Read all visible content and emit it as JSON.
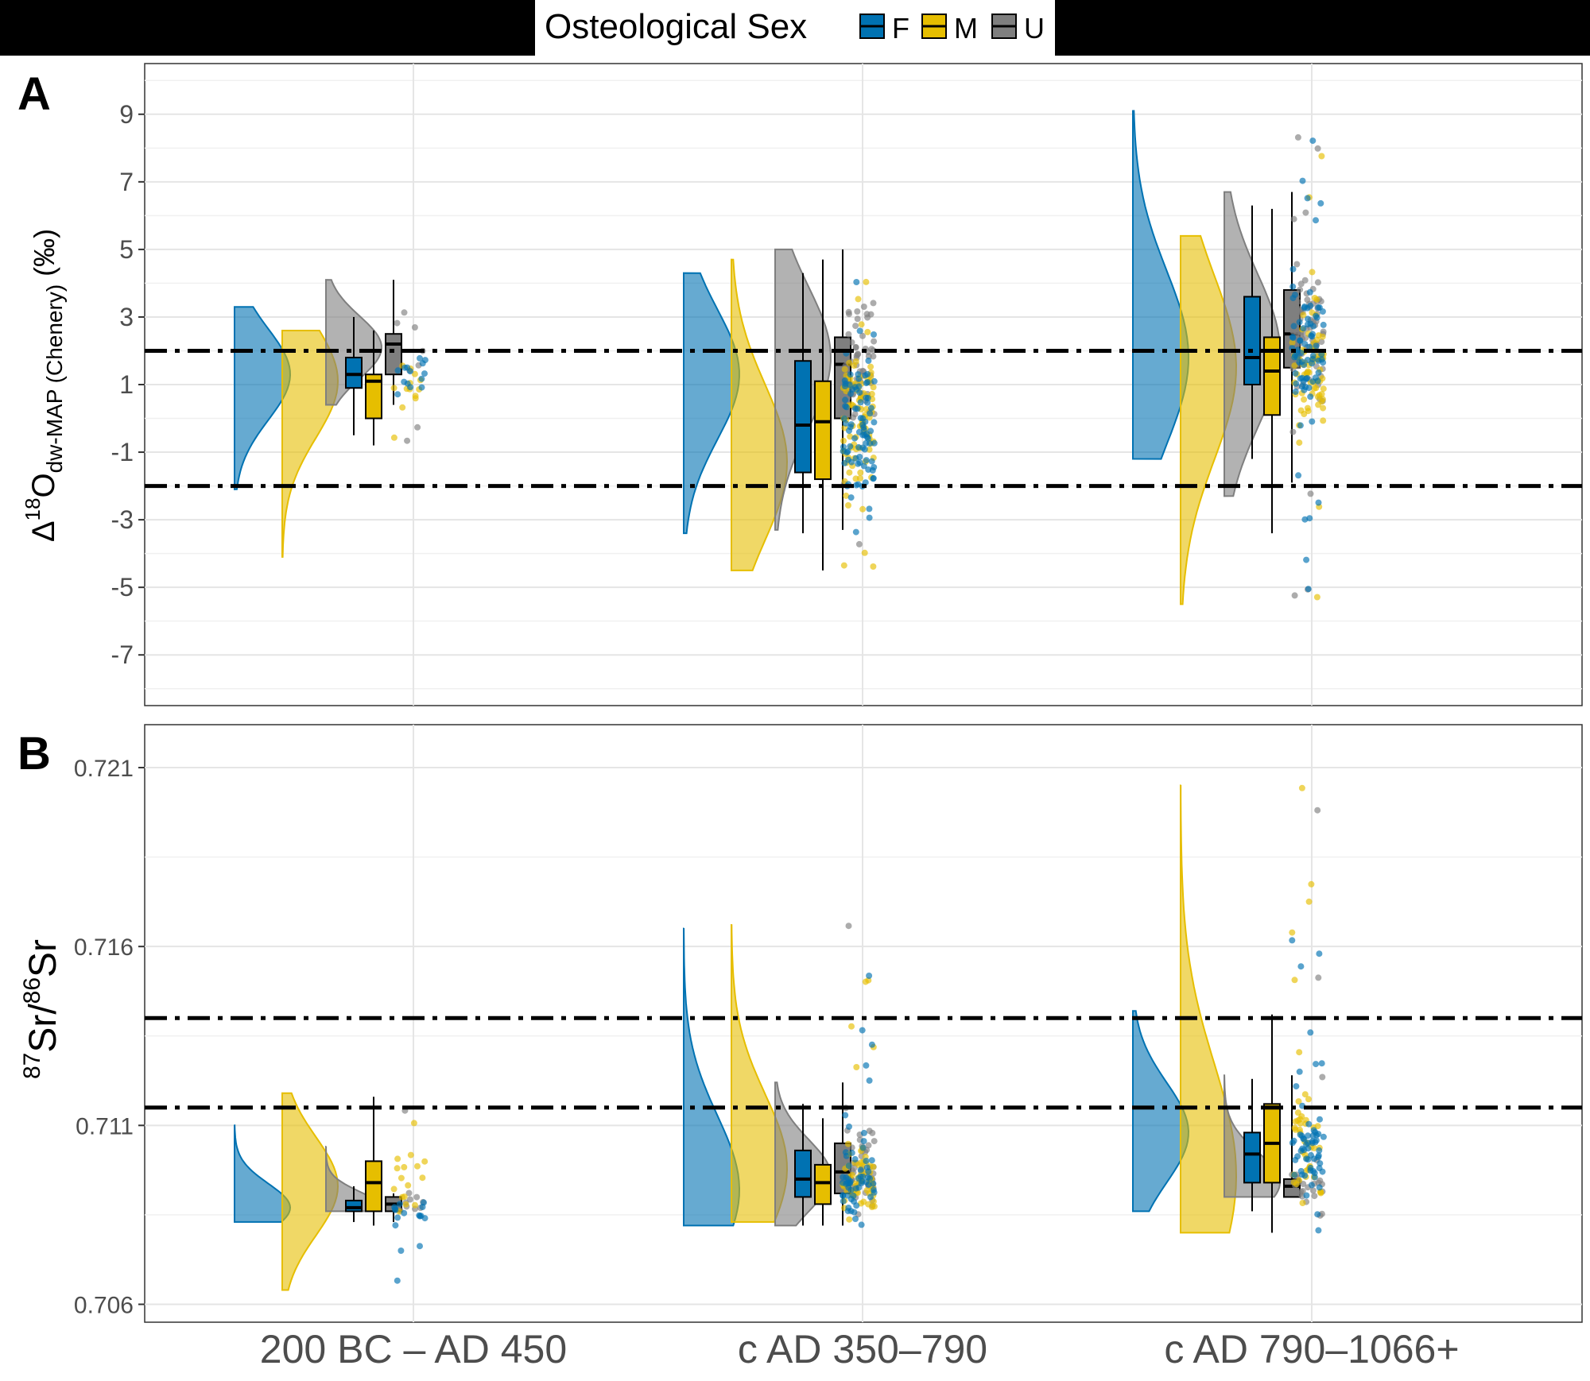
{
  "legend": {
    "title": "Osteological Sex",
    "items": [
      {
        "key": "F",
        "label": "F",
        "color": "#0072B2"
      },
      {
        "key": "M",
        "label": "M",
        "color": "#E6BE00"
      },
      {
        "key": "U",
        "label": "U",
        "color": "#7F7F7F"
      }
    ]
  },
  "x_categories": [
    "200 BC – AD 450",
    "c AD 350–790",
    "c AD 790–1066+"
  ],
  "chart_data": [
    {
      "panel": "A",
      "type": "raincloud",
      "ylabel_main": "Δ",
      "ylabel_sup": "18",
      "ylabel_letter": "O",
      "ylabel_sub": "dw-MAP (Chenery)",
      "ylabel_unit": " (‰)",
      "ylim": [
        -8.5,
        10.5
      ],
      "yticks": [
        9,
        7,
        5,
        3,
        1,
        -1,
        -3,
        -5,
        -7
      ],
      "ytick_labels": [
        "9",
        "7",
        "5",
        "3",
        "1",
        "-1",
        "-3",
        "-5",
        "-7"
      ],
      "grid": true,
      "reference_lines": [
        2,
        -2
      ],
      "groups": [
        {
          "category": "200 BC – AD 450",
          "boxes": [
            {
              "sex": "F",
              "min": -0.5,
              "q1": 0.9,
              "median": 1.3,
              "q3": 1.8,
              "max": 3.0
            },
            {
              "sex": "M",
              "min": -0.8,
              "q1": 0.0,
              "median": 1.1,
              "q3": 1.3,
              "max": 2.6
            },
            {
              "sex": "U",
              "min": 0.4,
              "q1": 1.3,
              "median": 2.2,
              "q3": 2.5,
              "max": 4.1
            }
          ],
          "densities": [
            {
              "sex": "F",
              "min": -2.1,
              "max": 3.3,
              "mode": 1.3
            },
            {
              "sex": "M",
              "min": -4.1,
              "max": 2.6,
              "mode": 1.1
            },
            {
              "sex": "U",
              "min": 0.4,
              "max": 4.1,
              "mode": 2.1
            }
          ],
          "points": {
            "F": 14,
            "M": 13,
            "U": 8,
            "min": -4.1,
            "max": 4.1
          }
        },
        {
          "category": "c AD 350–790",
          "boxes": [
            {
              "sex": "F",
              "min": -3.4,
              "q1": -1.6,
              "median": -0.2,
              "q3": 1.7,
              "max": 4.3
            },
            {
              "sex": "M",
              "min": -4.5,
              "q1": -1.8,
              "median": -0.1,
              "q3": 1.1,
              "max": 4.7
            },
            {
              "sex": "U",
              "min": -3.3,
              "q1": 0.0,
              "median": 1.6,
              "q3": 2.4,
              "max": 5.0
            }
          ],
          "densities": [
            {
              "sex": "F",
              "min": -3.4,
              "max": 4.3,
              "mode": 1.3
            },
            {
              "sex": "M",
              "min": -4.5,
              "max": 4.7,
              "mode": -1.3
            },
            {
              "sex": "U",
              "min": -3.3,
              "max": 5.0,
              "mode": 1.8
            }
          ],
          "points": {
            "F": 90,
            "M": 90,
            "U": 60,
            "min": -4.5,
            "max": 5.0
          }
        },
        {
          "category": "c AD 790–1066+",
          "boxes": [
            {
              "sex": "F",
              "min": -1.2,
              "q1": 1.0,
              "median": 1.8,
              "q3": 3.6,
              "max": 6.3
            },
            {
              "sex": "M",
              "min": -3.4,
              "q1": 0.1,
              "median": 1.4,
              "q3": 2.4,
              "max": 6.2
            },
            {
              "sex": "U",
              "min": -1.9,
              "q1": 1.5,
              "median": 2.5,
              "q3": 3.8,
              "max": 6.7
            }
          ],
          "densities": [
            {
              "sex": "F",
              "min": -1.2,
              "max": 9.1,
              "mode": 1.8
            },
            {
              "sex": "M",
              "min": -5.5,
              "max": 5.4,
              "mode": 1.5
            },
            {
              "sex": "U",
              "min": -2.3,
              "max": 6.7,
              "mode": 2.0
            }
          ],
          "points": {
            "F": 80,
            "M": 70,
            "U": 90,
            "min": -5.5,
            "max": 9.1
          }
        }
      ]
    },
    {
      "panel": "B",
      "type": "raincloud",
      "ylabel_sup1": "87",
      "ylabel_mid1": "Sr/",
      "ylabel_sup2": "86",
      "ylabel_mid2": "Sr",
      "ylim": [
        0.7055,
        0.7222
      ],
      "yticks": [
        0.721,
        0.716,
        0.711,
        0.706
      ],
      "ytick_labels": [
        "0.721",
        "0.716",
        "0.711",
        "0.706"
      ],
      "grid": true,
      "reference_lines": [
        0.714,
        0.7115
      ],
      "groups": [
        {
          "category": "200 BC – AD 450",
          "boxes": [
            {
              "sex": "F",
              "min": 0.7083,
              "q1": 0.7086,
              "median": 0.7087,
              "q3": 0.7089,
              "max": 0.7093
            },
            {
              "sex": "M",
              "min": 0.7082,
              "q1": 0.7086,
              "median": 0.7094,
              "q3": 0.71,
              "max": 0.7118
            },
            {
              "sex": "U",
              "min": 0.7083,
              "q1": 0.7086,
              "median": 0.7088,
              "q3": 0.709,
              "max": 0.7091
            }
          ],
          "densities": [
            {
              "sex": "F",
              "min": 0.7083,
              "max": 0.711,
              "mode": 0.7087
            },
            {
              "sex": "M",
              "min": 0.7064,
              "max": 0.7119,
              "mode": 0.7093
            },
            {
              "sex": "U",
              "min": 0.7086,
              "max": 0.7104,
              "mode": 0.7087
            }
          ],
          "points": {
            "F": 16,
            "M": 16,
            "U": 10,
            "min": 0.7064,
            "max": 0.7119
          }
        },
        {
          "category": "c AD 350–790",
          "boxes": [
            {
              "sex": "F",
              "min": 0.7082,
              "q1": 0.709,
              "median": 0.7095,
              "q3": 0.7103,
              "max": 0.7116
            },
            {
              "sex": "M",
              "min": 0.7082,
              "q1": 0.7088,
              "median": 0.7094,
              "q3": 0.7099,
              "max": 0.7112
            },
            {
              "sex": "U",
              "min": 0.7082,
              "q1": 0.7091,
              "median": 0.7097,
              "q3": 0.7105,
              "max": 0.7122
            }
          ],
          "densities": [
            {
              "sex": "F",
              "min": 0.7082,
              "max": 0.7165,
              "mode": 0.7092
            },
            {
              "sex": "M",
              "min": 0.7083,
              "max": 0.7166,
              "mode": 0.7098
            },
            {
              "sex": "U",
              "min": 0.7082,
              "max": 0.7122,
              "mode": 0.7096
            }
          ],
          "points": {
            "F": 60,
            "M": 60,
            "U": 50,
            "min": 0.7082,
            "max": 0.7166
          }
        },
        {
          "category": "c AD 790–1066+",
          "boxes": [
            {
              "sex": "F",
              "min": 0.7086,
              "q1": 0.7094,
              "median": 0.7102,
              "q3": 0.7108,
              "max": 0.7123
            },
            {
              "sex": "M",
              "min": 0.708,
              "q1": 0.7094,
              "median": 0.7105,
              "q3": 0.7116,
              "max": 0.7141
            },
            {
              "sex": "U",
              "min": 0.709,
              "q1": 0.709,
              "median": 0.7093,
              "q3": 0.7095,
              "max": 0.7124
            }
          ],
          "densities": [
            {
              "sex": "F",
              "min": 0.7086,
              "max": 0.7142,
              "mode": 0.7108
            },
            {
              "sex": "M",
              "min": 0.708,
              "max": 0.7205,
              "mode": 0.7096
            },
            {
              "sex": "U",
              "min": 0.709,
              "max": 0.7124,
              "mode": 0.7094
            }
          ],
          "points": {
            "F": 60,
            "M": 45,
            "U": 25,
            "min": 0.708,
            "max": 0.7206
          }
        }
      ]
    }
  ]
}
